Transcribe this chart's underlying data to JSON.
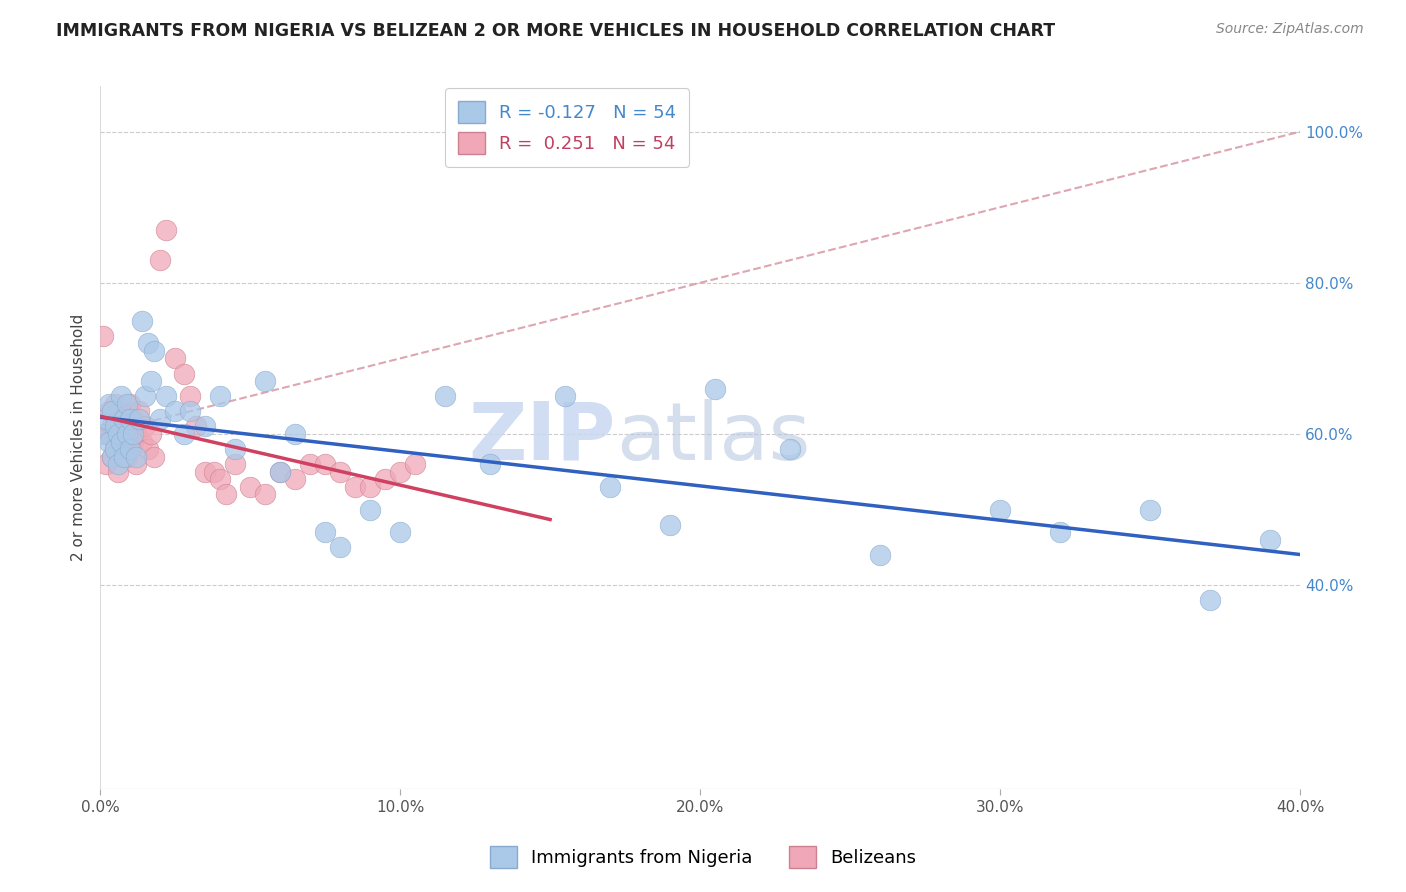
{
  "title": "IMMIGRANTS FROM NIGERIA VS BELIZEAN 2 OR MORE VEHICLES IN HOUSEHOLD CORRELATION CHART",
  "source": "Source: ZipAtlas.com",
  "ylabel": "2 or more Vehicles in Household",
  "legend_labels": [
    "Immigrants from Nigeria",
    "Belizeans"
  ],
  "watermark_zip": "ZIP",
  "watermark_atlas": "atlas",
  "xlim": [
    0.0,
    0.4
  ],
  "ylim": [
    0.13,
    1.06
  ],
  "nigeria_color": "#aac8e8",
  "nigeria_edge": "#88aacc",
  "belize_color": "#f0a8b8",
  "belize_edge": "#cc8090",
  "nigeria_x": [
    0.001,
    0.002,
    0.003,
    0.003,
    0.004,
    0.004,
    0.005,
    0.005,
    0.006,
    0.006,
    0.007,
    0.007,
    0.008,
    0.008,
    0.009,
    0.009,
    0.01,
    0.01,
    0.011,
    0.012,
    0.013,
    0.014,
    0.015,
    0.016,
    0.017,
    0.018,
    0.02,
    0.022,
    0.025,
    0.028,
    0.03,
    0.035,
    0.04,
    0.045,
    0.055,
    0.06,
    0.065,
    0.075,
    0.08,
    0.09,
    0.1,
    0.115,
    0.13,
    0.155,
    0.17,
    0.19,
    0.205,
    0.23,
    0.26,
    0.3,
    0.32,
    0.35,
    0.37,
    0.39
  ],
  "nigeria_y": [
    0.6,
    0.62,
    0.59,
    0.64,
    0.57,
    0.63,
    0.61,
    0.58,
    0.6,
    0.56,
    0.65,
    0.59,
    0.62,
    0.57,
    0.6,
    0.64,
    0.62,
    0.58,
    0.6,
    0.57,
    0.62,
    0.75,
    0.65,
    0.72,
    0.67,
    0.71,
    0.62,
    0.65,
    0.63,
    0.6,
    0.63,
    0.61,
    0.65,
    0.58,
    0.67,
    0.55,
    0.6,
    0.47,
    0.45,
    0.5,
    0.47,
    0.65,
    0.56,
    0.65,
    0.53,
    0.48,
    0.66,
    0.58,
    0.44,
    0.5,
    0.47,
    0.5,
    0.38,
    0.46
  ],
  "belize_x": [
    0.001,
    0.002,
    0.002,
    0.003,
    0.003,
    0.004,
    0.004,
    0.005,
    0.005,
    0.005,
    0.006,
    0.006,
    0.007,
    0.007,
    0.007,
    0.008,
    0.008,
    0.009,
    0.009,
    0.01,
    0.01,
    0.011,
    0.011,
    0.012,
    0.012,
    0.013,
    0.014,
    0.015,
    0.016,
    0.017,
    0.018,
    0.02,
    0.022,
    0.025,
    0.028,
    0.03,
    0.032,
    0.035,
    0.038,
    0.04,
    0.042,
    0.045,
    0.05,
    0.055,
    0.06,
    0.065,
    0.07,
    0.075,
    0.08,
    0.085,
    0.09,
    0.095,
    0.1,
    0.105
  ],
  "belize_y": [
    0.73,
    0.6,
    0.56,
    0.6,
    0.63,
    0.57,
    0.61,
    0.6,
    0.58,
    0.64,
    0.62,
    0.55,
    0.6,
    0.59,
    0.63,
    0.58,
    0.62,
    0.6,
    0.57,
    0.61,
    0.64,
    0.59,
    0.62,
    0.6,
    0.56,
    0.63,
    0.59,
    0.61,
    0.58,
    0.6,
    0.57,
    0.83,
    0.87,
    0.7,
    0.68,
    0.65,
    0.61,
    0.55,
    0.55,
    0.54,
    0.52,
    0.56,
    0.53,
    0.52,
    0.55,
    0.54,
    0.56,
    0.56,
    0.55,
    0.53,
    0.53,
    0.54,
    0.55,
    0.56
  ],
  "nigeria_line_x": [
    0.0,
    0.4
  ],
  "belize_line_x": [
    0.0,
    0.15
  ],
  "diag_line": [
    [
      0.0,
      0.4
    ],
    [
      0.6,
      1.0
    ]
  ],
  "nigeria_R": -0.127,
  "belize_R": 0.251,
  "N": 54
}
